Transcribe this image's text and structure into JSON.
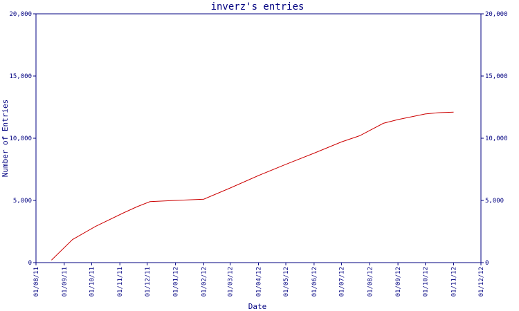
{
  "chart_data": {
    "type": "line",
    "title": "inverz's entries",
    "xlabel": "Date",
    "ylabel": "Number of Entries",
    "ylim": [
      0,
      20000
    ],
    "yticks": [
      0,
      5000,
      10000,
      15000,
      20000
    ],
    "ytick_labels": [
      "0",
      "5,000",
      "10,000",
      "15,000",
      "20,000"
    ],
    "xlim": [
      "2011-08-01",
      "2012-12-01"
    ],
    "xtick_labels": [
      "01/08/11",
      "01/09/11",
      "01/10/11",
      "01/11/11",
      "01/12/11",
      "01/01/12",
      "01/02/12",
      "01/03/12",
      "01/04/12",
      "01/05/12",
      "01/06/12",
      "01/07/12",
      "01/08/12",
      "01/09/12",
      "01/10/12",
      "01/11/12",
      "01/12/12"
    ],
    "xtick_dates": [
      "2011-08-01",
      "2011-09-01",
      "2011-10-01",
      "2011-11-01",
      "2011-12-01",
      "2012-01-01",
      "2012-02-01",
      "2012-03-01",
      "2012-04-01",
      "2012-05-01",
      "2012-06-01",
      "2012-07-01",
      "2012-08-01",
      "2012-09-01",
      "2012-10-01",
      "2012-11-01",
      "2012-12-01"
    ],
    "grid": false,
    "series": [
      {
        "color": "#cc0000",
        "points": [
          {
            "x": "2011-08-18",
            "y": 200
          },
          {
            "x": "2011-09-10",
            "y": 1850
          },
          {
            "x": "2011-10-05",
            "y": 2900
          },
          {
            "x": "2011-11-05",
            "y": 4000
          },
          {
            "x": "2011-11-20",
            "y": 4500
          },
          {
            "x": "2011-12-04",
            "y": 4900
          },
          {
            "x": "2012-01-01",
            "y": 5000
          },
          {
            "x": "2012-02-01",
            "y": 5100
          },
          {
            "x": "2012-03-01",
            "y": 6000
          },
          {
            "x": "2012-04-01",
            "y": 7000
          },
          {
            "x": "2012-05-01",
            "y": 7900
          },
          {
            "x": "2012-06-01",
            "y": 8800
          },
          {
            "x": "2012-07-01",
            "y": 9700
          },
          {
            "x": "2012-07-21",
            "y": 10200
          },
          {
            "x": "2012-08-16",
            "y": 11200
          },
          {
            "x": "2012-09-01",
            "y": 11500
          },
          {
            "x": "2012-10-01",
            "y": 11950
          },
          {
            "x": "2012-10-15",
            "y": 12050
          },
          {
            "x": "2012-11-01",
            "y": 12100
          }
        ]
      }
    ],
    "colors": {
      "axis": "#000080",
      "text": "#000080",
      "line": "#cc0000"
    }
  }
}
